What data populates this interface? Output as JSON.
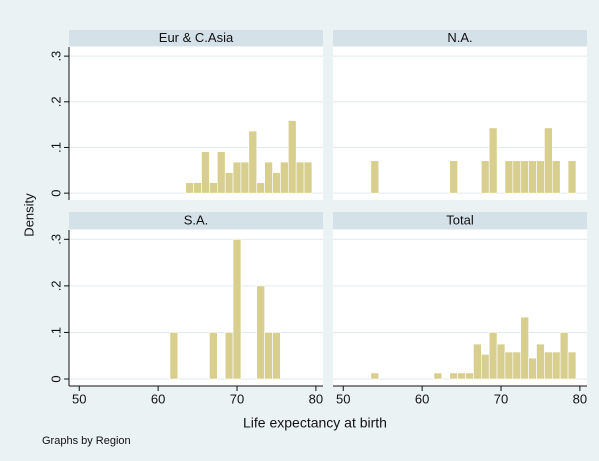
{
  "chart_data": {
    "type": "histogram",
    "xlabel": "Life expectancy at birth",
    "ylabel": "Density",
    "note": "Graphs by Region",
    "bins": [
      53.5,
      54.5,
      55.5,
      56.5,
      57.5,
      58.5,
      59.5,
      60.5,
      61.5,
      62.5,
      63.5,
      64.5,
      65.5,
      66.5,
      67.5,
      68.5,
      69.5,
      70.5,
      71.5,
      72.5,
      73.5,
      74.5,
      75.5,
      76.5,
      77.5,
      78.5,
      79.5
    ],
    "xlim": [
      48.7,
      80.9
    ],
    "ylim": [
      -0.015,
      0.32
    ],
    "xticks": [
      50,
      60,
      70,
      80
    ],
    "yticks": [
      {
        "value": 0,
        "label": "0"
      },
      {
        "value": 0.1,
        "label": ".1"
      },
      {
        "value": 0.2,
        "label": ".2"
      },
      {
        "value": 0.3,
        "label": ".3"
      }
    ],
    "color": "#d8cf8e",
    "grid": true,
    "panels": [
      {
        "title": "Eur & C.Asia",
        "values": [
          0,
          0,
          0,
          0,
          0,
          0,
          0,
          0,
          0,
          0,
          0.023,
          0.023,
          0.091,
          0.023,
          0.091,
          0.045,
          0.068,
          0.068,
          0.136,
          0.023,
          0.068,
          0.045,
          0.068,
          0.159,
          0.068,
          0.068
        ]
      },
      {
        "title": "N.A.",
        "values": [
          0.071,
          0,
          0,
          0,
          0,
          0,
          0,
          0,
          0,
          0,
          0.071,
          0,
          0,
          0,
          0.071,
          0.143,
          0,
          0.071,
          0.071,
          0.071,
          0.071,
          0.071,
          0.143,
          0.071,
          0,
          0.071
        ]
      },
      {
        "title": "S.A.",
        "values": [
          0,
          0,
          0,
          0,
          0,
          0,
          0,
          0,
          0.1,
          0,
          0,
          0,
          0,
          0.1,
          0,
          0.1,
          0.3,
          0,
          0,
          0.2,
          0.1,
          0.1,
          0,
          0,
          0,
          0
        ]
      },
      {
        "title": "Total",
        "values": [
          0.013,
          0,
          0,
          0,
          0,
          0,
          0,
          0,
          0.013,
          0,
          0.013,
          0.013,
          0.013,
          0.075,
          0.053,
          0.1,
          0.075,
          0.058,
          0.058,
          0.133,
          0.045,
          0.075,
          0.058,
          0.058,
          0.1,
          0.058
        ]
      }
    ]
  }
}
